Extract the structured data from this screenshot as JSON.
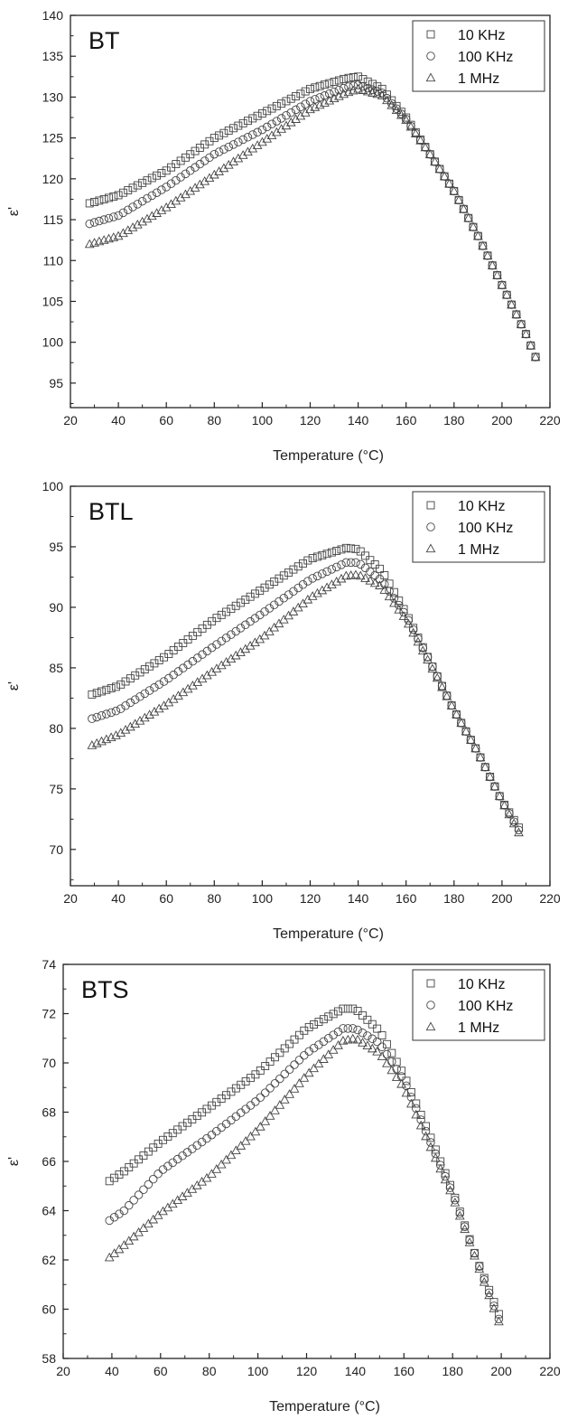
{
  "chart_data": [
    {
      "type": "scatter",
      "title": "BT",
      "xlabel": "Temperature (°C)",
      "ylabel": "ε'",
      "xlim": [
        20,
        220
      ],
      "ylim": [
        92,
        140
      ],
      "xticks": [
        20,
        40,
        60,
        80,
        100,
        120,
        140,
        160,
        180,
        200,
        220
      ],
      "yticks": [
        95,
        100,
        105,
        110,
        115,
        120,
        125,
        130,
        135,
        140
      ],
      "grid": false,
      "legend_position": "top-right",
      "series": [
        {
          "name": "10 KHz",
          "marker": "square",
          "x": [
            28,
            40,
            60,
            80,
            100,
            120,
            135,
            140,
            150,
            160,
            170,
            180,
            190,
            200,
            210,
            215
          ],
          "y": [
            117.0,
            118.0,
            121.0,
            125.0,
            128.0,
            131.0,
            132.3,
            132.5,
            131.0,
            127.5,
            123.0,
            118.5,
            113.0,
            107.0,
            101.0,
            97.5
          ]
        },
        {
          "name": "100 KHz",
          "marker": "circle",
          "x": [
            28,
            40,
            60,
            80,
            100,
            120,
            135,
            140,
            150,
            160,
            170,
            180,
            190,
            200,
            210,
            215
          ],
          "y": [
            114.5,
            115.5,
            119.0,
            123.0,
            126.0,
            129.5,
            131.2,
            131.5,
            130.5,
            127.3,
            123.0,
            118.5,
            113.0,
            107.0,
            101.0,
            97.5
          ]
        },
        {
          "name": "1 MHz",
          "marker": "triangle",
          "x": [
            28,
            40,
            60,
            80,
            100,
            120,
            135,
            140,
            150,
            160,
            170,
            180,
            190,
            200,
            210,
            215
          ],
          "y": [
            112.0,
            113.0,
            116.5,
            120.5,
            124.5,
            128.5,
            130.5,
            131.0,
            130.2,
            127.2,
            123.0,
            118.5,
            113.0,
            107.0,
            101.0,
            97.5
          ]
        }
      ]
    },
    {
      "type": "scatter",
      "title": "BTL",
      "xlabel": "Temperature (°C)",
      "ylabel": "ε'",
      "xlim": [
        20,
        220
      ],
      "ylim": [
        67,
        100
      ],
      "xticks": [
        20,
        40,
        60,
        80,
        100,
        120,
        140,
        160,
        180,
        200,
        220
      ],
      "yticks": [
        70,
        75,
        80,
        85,
        90,
        95,
        100
      ],
      "grid": false,
      "legend_position": "top-right",
      "series": [
        {
          "name": "10 KHz",
          "marker": "square",
          "x": [
            29,
            40,
            60,
            80,
            100,
            120,
            135,
            140,
            150,
            160,
            170,
            180,
            190,
            200,
            207
          ],
          "y": [
            82.8,
            83.5,
            86.0,
            89.0,
            91.5,
            94.0,
            94.9,
            94.8,
            93.0,
            89.5,
            85.5,
            81.5,
            78.0,
            74.0,
            71.8
          ]
        },
        {
          "name": "100 KHz",
          "marker": "circle",
          "x": [
            29,
            40,
            60,
            80,
            100,
            120,
            135,
            140,
            150,
            160,
            170,
            180,
            190,
            200,
            207
          ],
          "y": [
            80.8,
            81.5,
            84.0,
            86.8,
            89.5,
            92.3,
            93.7,
            93.7,
            92.2,
            89.3,
            85.5,
            81.5,
            78.0,
            74.0,
            71.6
          ]
        },
        {
          "name": "1 MHz",
          "marker": "triangle",
          "x": [
            29,
            40,
            60,
            80,
            100,
            120,
            135,
            140,
            150,
            160,
            170,
            180,
            190,
            200,
            207
          ],
          "y": [
            78.6,
            79.5,
            82.0,
            84.8,
            87.5,
            90.8,
            92.6,
            92.7,
            91.7,
            89.0,
            85.3,
            81.5,
            78.0,
            74.0,
            71.4
          ]
        }
      ]
    },
    {
      "type": "scatter",
      "title": "BTS",
      "xlabel": "Temperature (°C)",
      "ylabel": "ε'",
      "xlim": [
        20,
        220
      ],
      "ylim": [
        58,
        74
      ],
      "xticks": [
        20,
        40,
        60,
        80,
        100,
        120,
        140,
        160,
        180,
        200,
        220
      ],
      "yticks": [
        58,
        60,
        62,
        64,
        66,
        68,
        70,
        72,
        74
      ],
      "grid": false,
      "legend_position": "top-right",
      "series": [
        {
          "name": "10 KHz",
          "marker": "square",
          "x": [
            39,
            45,
            60,
            80,
            100,
            120,
            135,
            140,
            150,
            160,
            170,
            180,
            190,
            199
          ],
          "y": [
            65.2,
            65.6,
            66.8,
            68.2,
            69.6,
            71.4,
            72.2,
            72.2,
            71.3,
            69.5,
            67.2,
            64.8,
            62.0,
            59.8
          ]
        },
        {
          "name": "100 KHz",
          "marker": "circle",
          "x": [
            39,
            45,
            60,
            80,
            100,
            120,
            135,
            140,
            150,
            160,
            170,
            180,
            190,
            199
          ],
          "y": [
            63.6,
            64.0,
            65.6,
            67.0,
            68.5,
            70.4,
            71.4,
            71.4,
            70.8,
            69.3,
            67.0,
            64.7,
            62.0,
            59.6
          ]
        },
        {
          "name": "1 MHz",
          "marker": "triangle",
          "x": [
            39,
            45,
            60,
            80,
            100,
            120,
            135,
            140,
            150,
            160,
            170,
            180,
            190,
            199
          ],
          "y": [
            62.1,
            62.6,
            63.9,
            65.4,
            67.3,
            69.5,
            70.9,
            71.0,
            70.4,
            69.0,
            66.8,
            64.6,
            61.9,
            59.5
          ]
        }
      ]
    }
  ]
}
